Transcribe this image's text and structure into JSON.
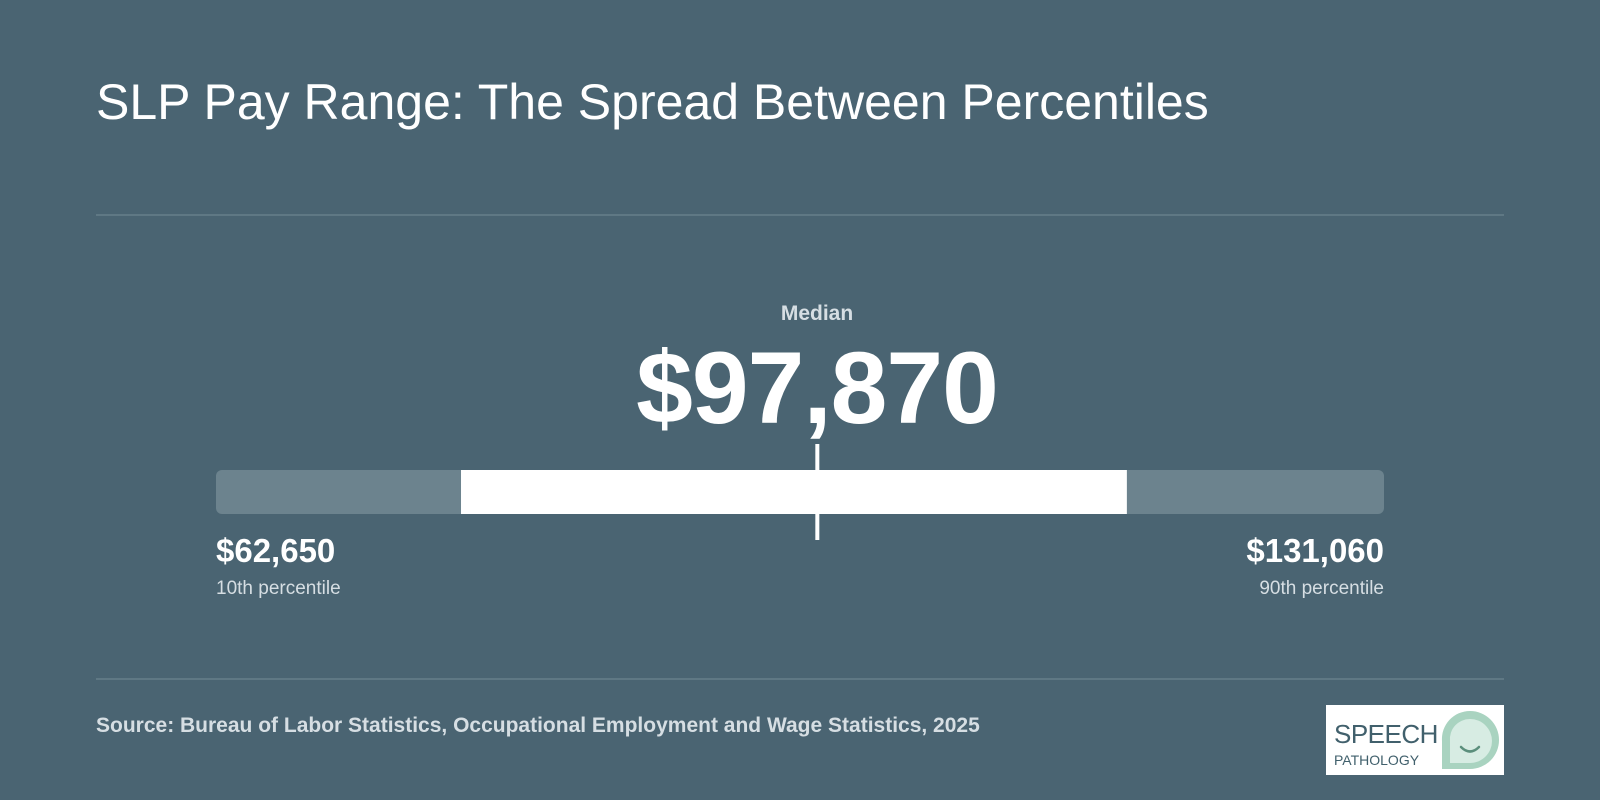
{
  "title": "SLP Pay Range: The Spread Between Percentiles",
  "source": "Source: Bureau of Labor Statistics, Occupational Employment and Wage Statistics, 2025",
  "logo": {
    "line1": "SPEECH",
    "line2": "PATHOLOGY"
  },
  "colors": {
    "background": "#4a6472",
    "track": "#6c838e",
    "range_fill": "#ffffff",
    "accent_logo": "#a9d3c0"
  },
  "chart_data": {
    "type": "range",
    "title": "SLP Pay Range: The Spread Between Percentiles",
    "median": {
      "label": "Median",
      "value": 97870,
      "display": "$97,870"
    },
    "low": {
      "label": "10th percentile",
      "value": 62650,
      "display": "$62,650"
    },
    "high": {
      "label": "90th percentile",
      "value": 131060,
      "display": "$131,060"
    },
    "highlight_range": [
      77000,
      116000
    ]
  }
}
